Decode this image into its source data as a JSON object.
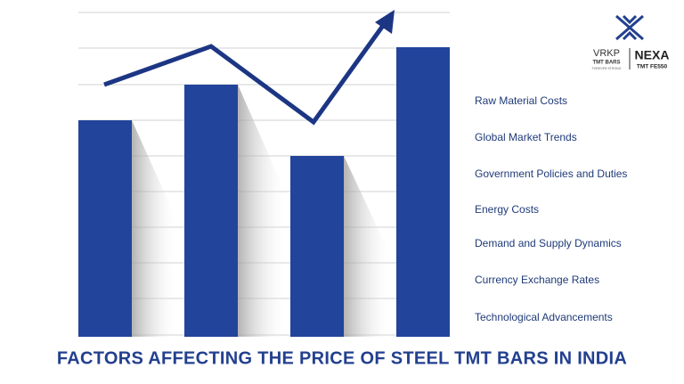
{
  "logo": {
    "brand": "VRKP",
    "brand_sub": "TMT BARS",
    "brand_tagline": "FOREVER STRONG",
    "partner": "NEXA",
    "partner_sub": "TMT FE550"
  },
  "factors": [
    "Raw Material Costs",
    "Global Market Trends",
    "Government Policies and Duties",
    "Energy Costs",
    "Demand and Supply Dynamics",
    "Currency Exchange Rates",
    "Technological Advancements"
  ],
  "title": "FACTORS AFFECTING THE PRICE OF STEEL TMT BARS IN INDIA"
}
